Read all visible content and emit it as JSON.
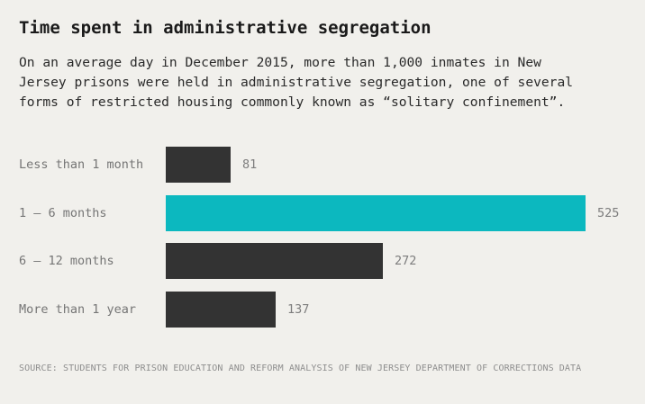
{
  "chart_data": {
    "type": "bar",
    "orientation": "horizontal",
    "title": "Time spent in administrative segregation",
    "subtitle": "On an average day in December 2015, more than 1,000 inmates in New Jersey prisons were held in administrative segregation, one of several forms of restricted housing commonly known as “solitary confinement”.",
    "categories": [
      "Less than 1 month",
      "1 – 6 months",
      "6 – 12 months",
      "More than 1 year"
    ],
    "values": [
      81,
      525,
      272,
      137
    ],
    "value_labels": [
      "81",
      "525",
      "272",
      "137"
    ],
    "highlighted_category": "1 – 6 months",
    "xlim": [
      0,
      525
    ],
    "grid": false,
    "legend": "none",
    "source": "SOURCE: STUDENTS FOR PRISON EDUCATION AND REFORM ANALYSIS OF NEW JERSEY DEPARTMENT OF CORRECTIONS DATA",
    "colors": {
      "background": "#f1f0ec",
      "bar_default": "#333333",
      "bar_highlight": "#0cb8bf",
      "title_text": "#1a1a1a",
      "body_text": "#2a2a2a",
      "label_text": "#757575",
      "source_text": "#8e8e8e"
    }
  }
}
